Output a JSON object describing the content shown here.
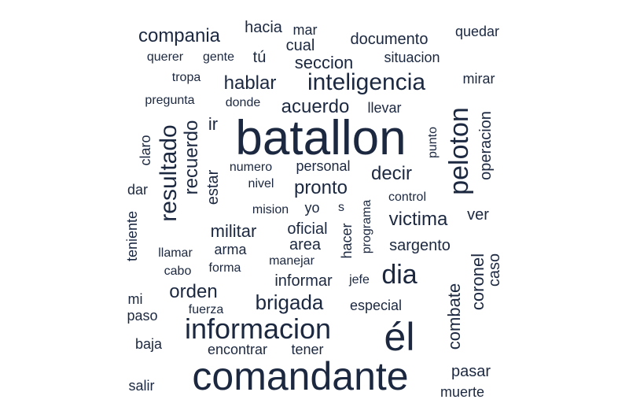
{
  "cloud": {
    "color": "#1b2840",
    "words": [
      {
        "text": "batallon",
        "rotated": false
      },
      {
        "text": "comandante",
        "rotated": false
      },
      {
        "text": "él",
        "rotated": false
      },
      {
        "text": "informacion",
        "rotated": false
      },
      {
        "text": "inteligencia",
        "rotated": false
      },
      {
        "text": "peloton",
        "rotated": true
      },
      {
        "text": "resultado",
        "rotated": true
      },
      {
        "text": "dia",
        "rotated": false
      },
      {
        "text": "compania",
        "rotated": false
      },
      {
        "text": "brigada",
        "rotated": false
      },
      {
        "text": "orden",
        "rotated": false
      },
      {
        "text": "hablar",
        "rotated": false
      },
      {
        "text": "acuerdo",
        "rotated": false
      },
      {
        "text": "recuerdo",
        "rotated": true
      },
      {
        "text": "pronto",
        "rotated": false
      },
      {
        "text": "victima",
        "rotated": false
      },
      {
        "text": "militar",
        "rotated": false
      },
      {
        "text": "combate",
        "rotated": true
      },
      {
        "text": "coronel",
        "rotated": true
      },
      {
        "text": "decir",
        "rotated": false
      },
      {
        "text": "seccion",
        "rotated": false
      },
      {
        "text": "operacion",
        "rotated": true
      },
      {
        "text": "ir",
        "rotated": false
      },
      {
        "text": "estar",
        "rotated": true
      },
      {
        "text": "caso",
        "rotated": true
      },
      {
        "text": "oficial",
        "rotated": false
      },
      {
        "text": "area",
        "rotated": false
      },
      {
        "text": "documento",
        "rotated": false
      },
      {
        "text": "sargento",
        "rotated": false
      },
      {
        "text": "informar",
        "rotated": false
      },
      {
        "text": "pasar",
        "rotated": false
      },
      {
        "text": "cual",
        "rotated": false
      },
      {
        "text": "mar",
        "rotated": false
      },
      {
        "text": "hacia",
        "rotated": false
      },
      {
        "text": "tú",
        "rotated": false
      },
      {
        "text": "situacion",
        "rotated": false
      },
      {
        "text": "mirar",
        "rotated": false
      },
      {
        "text": "llevar",
        "rotated": false
      },
      {
        "text": "personal",
        "rotated": false
      },
      {
        "text": "ver",
        "rotated": false
      },
      {
        "text": "especial",
        "rotated": false
      },
      {
        "text": "arma",
        "rotated": false
      },
      {
        "text": "teniente",
        "rotated": true
      },
      {
        "text": "baja",
        "rotated": false
      },
      {
        "text": "salir",
        "rotated": false
      },
      {
        "text": "mi",
        "rotated": false
      },
      {
        "text": "dar",
        "rotated": false
      },
      {
        "text": "paso",
        "rotated": false
      },
      {
        "text": "encontrar",
        "rotated": false
      },
      {
        "text": "tener",
        "rotated": false
      },
      {
        "text": "muerte",
        "rotated": false
      },
      {
        "text": "quedar",
        "rotated": false
      },
      {
        "text": "claro",
        "rotated": true
      },
      {
        "text": "punto",
        "rotated": true
      },
      {
        "text": "hacer",
        "rotated": true
      },
      {
        "text": "programa",
        "rotated": true
      },
      {
        "text": "yo",
        "rotated": false
      },
      {
        "text": "s",
        "rotated": false
      },
      {
        "text": "donde",
        "rotated": false
      },
      {
        "text": "numero",
        "rotated": false
      },
      {
        "text": "nivel",
        "rotated": false
      },
      {
        "text": "mision",
        "rotated": false
      },
      {
        "text": "control",
        "rotated": false
      },
      {
        "text": "tropa",
        "rotated": false
      },
      {
        "text": "pregunta",
        "rotated": false
      },
      {
        "text": "querer",
        "rotated": false
      },
      {
        "text": "gente",
        "rotated": false
      },
      {
        "text": "llamar",
        "rotated": false
      },
      {
        "text": "cabo",
        "rotated": false
      },
      {
        "text": "forma",
        "rotated": false
      },
      {
        "text": "manejar",
        "rotated": false
      },
      {
        "text": "jefe",
        "rotated": false
      },
      {
        "text": "fuerza",
        "rotated": false
      }
    ]
  }
}
